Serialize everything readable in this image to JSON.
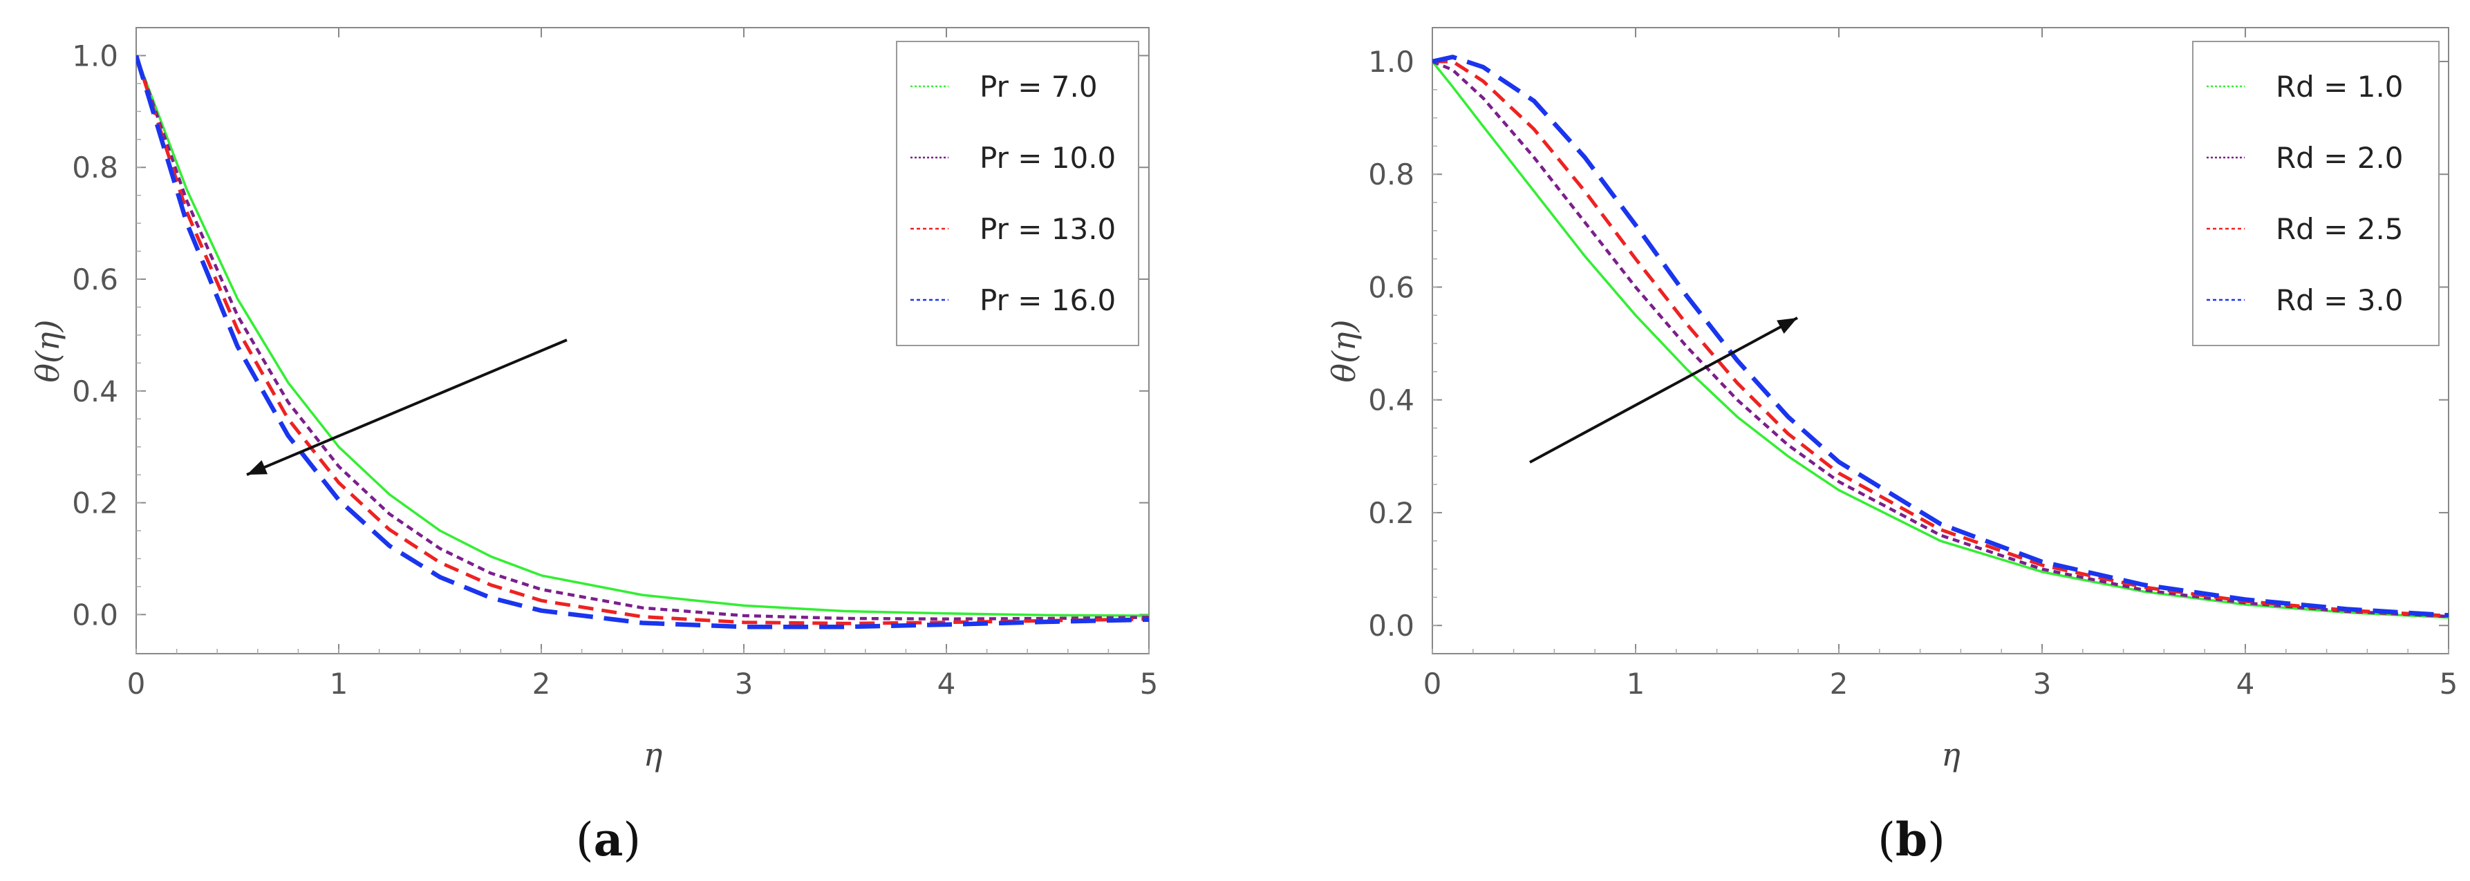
{
  "chart_data": [
    {
      "type": "line",
      "panel_label": "a",
      "xlabel": "η",
      "ylabel": "θ(η)",
      "xlim": [
        0,
        5
      ],
      "ylim": [
        -0.07,
        1.05
      ],
      "xticks": [
        "0",
        "1",
        "2",
        "3",
        "4",
        "5"
      ],
      "yticks": [
        "0.0",
        "0.2",
        "0.4",
        "0.6",
        "0.8",
        "1.0"
      ],
      "legend_position": "top-right",
      "annotation": "arrow pointing toward lower-left (increasing Pr)",
      "x": [
        0,
        0.25,
        0.5,
        0.75,
        1,
        1.25,
        1.5,
        1.75,
        2,
        2.5,
        3,
        3.5,
        4,
        4.5,
        5
      ],
      "series": [
        {
          "name": "Pr = 7.0",
          "color": "#33ee33",
          "dash": "solid",
          "values": [
            1.0,
            0.76,
            0.565,
            0.415,
            0.3,
            0.215,
            0.15,
            0.104,
            0.07,
            0.035,
            0.016,
            0.006,
            0.002,
            -0.001,
            -0.002
          ]
        },
        {
          "name": "Pr = 10.0",
          "color": "#7b1f8c",
          "dash": "short",
          "values": [
            1.0,
            0.74,
            0.535,
            0.38,
            0.265,
            0.18,
            0.118,
            0.074,
            0.045,
            0.012,
            -0.002,
            -0.007,
            -0.008,
            -0.007,
            -0.005
          ]
        },
        {
          "name": "Pr = 13.0",
          "color": "#ee2222",
          "dash": "medium",
          "values": [
            1.0,
            0.72,
            0.51,
            0.35,
            0.236,
            0.152,
            0.093,
            0.053,
            0.025,
            -0.004,
            -0.014,
            -0.016,
            -0.014,
            -0.011,
            -0.008
          ]
        },
        {
          "name": "Pr = 16.0",
          "color": "#1a35ee",
          "dash": "long",
          "values": [
            1.0,
            0.7,
            0.48,
            0.32,
            0.205,
            0.123,
            0.067,
            0.03,
            0.007,
            -0.015,
            -0.022,
            -0.022,
            -0.018,
            -0.013,
            -0.009
          ]
        }
      ]
    },
    {
      "type": "line",
      "panel_label": "b",
      "xlabel": "η",
      "ylabel": "θ(η)",
      "xlim": [
        0,
        5
      ],
      "ylim": [
        -0.05,
        1.06
      ],
      "xticks": [
        "0",
        "1",
        "2",
        "3",
        "4",
        "5"
      ],
      "yticks": [
        "0.0",
        "0.2",
        "0.4",
        "0.6",
        "0.8",
        "1.0"
      ],
      "legend_position": "top-right",
      "annotation": "arrow pointing toward upper-right (increasing Rd)",
      "x": [
        0,
        0.1,
        0.25,
        0.5,
        0.75,
        1,
        1.25,
        1.5,
        1.75,
        2,
        2.5,
        3,
        3.5,
        4,
        4.5,
        5
      ],
      "series": [
        {
          "name": "Rd = 1.0",
          "color": "#33ee33",
          "dash": "solid",
          "values": [
            1.0,
            0.955,
            0.885,
            0.77,
            0.655,
            0.55,
            0.455,
            0.37,
            0.3,
            0.24,
            0.15,
            0.095,
            0.06,
            0.037,
            0.023,
            0.014
          ]
        },
        {
          "name": "Rd = 2.0",
          "color": "#7b1f8c",
          "dash": "short",
          "values": [
            1.0,
            0.985,
            0.935,
            0.83,
            0.715,
            0.6,
            0.495,
            0.4,
            0.32,
            0.255,
            0.16,
            0.1,
            0.063,
            0.04,
            0.025,
            0.016
          ]
        },
        {
          "name": "Rd = 2.5",
          "color": "#ee2222",
          "dash": "medium",
          "values": [
            1.0,
            1.0,
            0.965,
            0.88,
            0.77,
            0.65,
            0.535,
            0.43,
            0.34,
            0.27,
            0.17,
            0.107,
            0.068,
            0.043,
            0.027,
            0.017
          ]
        },
        {
          "name": "Rd = 3.0",
          "color": "#1a35ee",
          "dash": "long",
          "values": [
            1.0,
            1.008,
            0.99,
            0.93,
            0.83,
            0.71,
            0.585,
            0.47,
            0.37,
            0.29,
            0.18,
            0.113,
            0.072,
            0.046,
            0.029,
            0.018
          ]
        }
      ]
    }
  ]
}
